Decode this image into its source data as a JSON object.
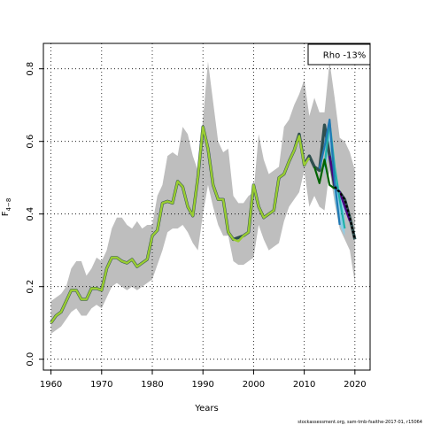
{
  "chart_data": {
    "type": "line",
    "title": "",
    "xlabel": "Years",
    "ylabel": "F",
    "ylabel_subscript": "4−8",
    "xlim": [
      1958.5,
      2023
    ],
    "ylim": [
      -0.03,
      0.87
    ],
    "xticks": [
      1960,
      1970,
      1980,
      1990,
      2000,
      2010,
      2020
    ],
    "xtick_labels": [
      "1960",
      "1970",
      "1980",
      "1990",
      "2000",
      "2010",
      "2020"
    ],
    "yticks": [
      0.0,
      0.2,
      0.4,
      0.6,
      0.8
    ],
    "ytick_labels": [
      "0.0",
      "0.2",
      "0.4",
      "0.6",
      "0.8"
    ],
    "grid": true,
    "legend": {
      "text": "Rho -13%",
      "placement": "top-right"
    },
    "credit": "stockassessment.org, sam-tmb-fsaithe-2017-01, r15064",
    "colors": {
      "band": "#bebebe",
      "band_recent": "#87ceeb",
      "base": "#000000",
      "peels": [
        "#006400",
        "#4b0082",
        "#1f78b4",
        "#20b2aa",
        "#9acd32"
      ]
    },
    "band": {
      "x": [
        1960,
        1961,
        1962,
        1963,
        1964,
        1965,
        1966,
        1967,
        1968,
        1969,
        1970,
        1971,
        1972,
        1973,
        1974,
        1975,
        1976,
        1977,
        1978,
        1979,
        1980,
        1981,
        1982,
        1983,
        1984,
        1985,
        1986,
        1987,
        1988,
        1989,
        1990,
        1991,
        1992,
        1993,
        1994,
        1995,
        1996,
        1997,
        1998,
        1999,
        2000,
        2001,
        2002,
        2003,
        2004,
        2005,
        2006,
        2007,
        2008,
        2009,
        2010,
        2011,
        2012,
        2013,
        2014,
        2015,
        2016,
        2017,
        2018,
        2019,
        2020
      ],
      "lower": [
        0.07,
        0.08,
        0.09,
        0.11,
        0.13,
        0.14,
        0.12,
        0.12,
        0.14,
        0.15,
        0.14,
        0.17,
        0.2,
        0.21,
        0.2,
        0.19,
        0.2,
        0.19,
        0.2,
        0.21,
        0.22,
        0.26,
        0.3,
        0.35,
        0.36,
        0.36,
        0.37,
        0.35,
        0.32,
        0.3,
        0.4,
        0.48,
        0.42,
        0.37,
        0.34,
        0.34,
        0.27,
        0.26,
        0.26,
        0.27,
        0.28,
        0.37,
        0.33,
        0.3,
        0.31,
        0.32,
        0.38,
        0.42,
        0.44,
        0.46,
        0.52,
        0.42,
        0.45,
        0.42,
        0.41,
        0.52,
        0.43,
        0.36,
        0.33,
        0.3,
        0.21
      ],
      "upper": [
        0.16,
        0.17,
        0.18,
        0.2,
        0.25,
        0.27,
        0.27,
        0.23,
        0.25,
        0.28,
        0.27,
        0.3,
        0.36,
        0.39,
        0.39,
        0.37,
        0.36,
        0.38,
        0.36,
        0.37,
        0.37,
        0.45,
        0.48,
        0.56,
        0.57,
        0.56,
        0.64,
        0.62,
        0.56,
        0.52,
        0.66,
        0.82,
        0.71,
        0.6,
        0.57,
        0.58,
        0.45,
        0.43,
        0.43,
        0.45,
        0.46,
        0.62,
        0.55,
        0.51,
        0.52,
        0.53,
        0.64,
        0.66,
        0.7,
        0.73,
        0.77,
        0.67,
        0.72,
        0.68,
        0.68,
        0.82,
        0.72,
        0.61,
        0.6,
        0.57,
        0.52
      ]
    },
    "series": [
      {
        "x": [
          1960,
          1961,
          1962,
          1963,
          1964,
          1965,
          1966,
          1967,
          1968,
          1969,
          1970,
          1971,
          1972,
          1973,
          1974,
          1975,
          1976,
          1977,
          1978,
          1979,
          1980,
          1981,
          1982,
          1983,
          1984,
          1985,
          1986,
          1987,
          1988,
          1989,
          1990,
          1991,
          1992,
          1993,
          1994,
          1995,
          1996,
          1997,
          1998,
          1999,
          2000,
          2001,
          2002,
          2003,
          2004,
          2005,
          2006,
          2007,
          2008,
          2009,
          2010,
          2011,
          2012,
          2013,
          2014,
          2015,
          2016,
          2017,
          2018,
          2019,
          2020
        ],
        "values": [
          0.1,
          0.12,
          0.13,
          0.16,
          0.19,
          0.19,
          0.165,
          0.165,
          0.195,
          0.195,
          0.19,
          0.25,
          0.28,
          0.28,
          0.27,
          0.265,
          0.275,
          0.255,
          0.265,
          0.275,
          0.34,
          0.355,
          0.43,
          0.435,
          0.43,
          0.49,
          0.475,
          0.42,
          0.395,
          0.5,
          0.64,
          0.58,
          0.48,
          0.44,
          0.44,
          0.35,
          0.33,
          0.335,
          0.34,
          0.35,
          0.48,
          0.42,
          0.39,
          0.4,
          0.41,
          0.5,
          0.51,
          0.545,
          0.575,
          0.62,
          0.535,
          0.56,
          0.53,
          0.52,
          0.645,
          0.56,
          0.475,
          0.46,
          0.44,
          0.39,
          0.33
        ]
      },
      {
        "x": [
          2015,
          2016,
          2017,
          2018,
          2019
        ],
        "values": [
          0.56,
          0.48,
          0.46,
          0.42,
          0.38
        ]
      },
      {
        "x": [
          2014,
          2015,
          2016,
          2017,
          2018
        ],
        "values": [
          0.53,
          0.655,
          0.53,
          0.44,
          0.36
        ]
      },
      {
        "x": [
          2013,
          2014,
          2015,
          2016,
          2017
        ],
        "values": [
          0.525,
          0.585,
          0.66,
          0.49,
          0.37
        ]
      },
      {
        "x": [
          2012,
          2013,
          2014,
          2015,
          2016
        ],
        "values": [
          0.53,
          0.485,
          0.55,
          0.48,
          0.47
        ]
      },
      {
        "x": [
          1960,
          1961,
          1962,
          1963,
          1964,
          1965,
          1966,
          1967,
          1968,
          1969,
          1970,
          1971,
          1972,
          1973,
          1974,
          1975,
          1976,
          1977,
          1978,
          1979,
          1980,
          1981,
          1982,
          1983,
          1984,
          1985,
          1986,
          1987,
          1988,
          1989,
          1990,
          1991,
          1992,
          1993,
          1994,
          1995,
          1996,
          1997,
          1998,
          1999,
          2000,
          2001,
          2002,
          2003,
          2004,
          2005,
          2006,
          2007,
          2008,
          2009,
          2010,
          2011
        ],
        "values": [
          0.1,
          0.12,
          0.13,
          0.16,
          0.19,
          0.19,
          0.165,
          0.165,
          0.195,
          0.195,
          0.19,
          0.25,
          0.28,
          0.28,
          0.27,
          0.265,
          0.275,
          0.255,
          0.265,
          0.275,
          0.34,
          0.355,
          0.43,
          0.435,
          0.43,
          0.49,
          0.475,
          0.42,
          0.395,
          0.5,
          0.64,
          0.58,
          0.48,
          0.44,
          0.44,
          0.35,
          0.33,
          0.325,
          0.34,
          0.35,
          0.48,
          0.42,
          0.39,
          0.4,
          0.41,
          0.5,
          0.51,
          0.545,
          0.575,
          0.615,
          0.535,
          0.555
        ]
      }
    ]
  }
}
